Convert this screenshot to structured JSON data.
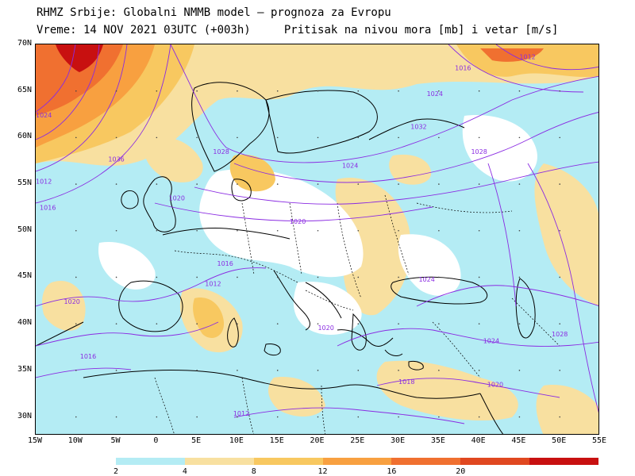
{
  "header": {
    "title": "RHMZ Srbije: Globalni NMMB model — prognoza za Evropu",
    "valid_time": "Vreme: 14 NOV 2021 03UTC (+003h)",
    "field": "Pritisak na nivou mora [mb] i vetar [m/s]"
  },
  "axes": {
    "lat_labels": [
      "70N",
      "65N",
      "60N",
      "55N",
      "50N",
      "45N",
      "40N",
      "35N",
      "30N"
    ],
    "lon_labels": [
      "15W",
      "10W",
      "5W",
      "0",
      "5E",
      "10E",
      "15E",
      "20E",
      "25E",
      "30E",
      "35E",
      "40E",
      "45E",
      "50E",
      "55E"
    ]
  },
  "colorbar": {
    "ticks": [
      "2",
      "4",
      "8",
      "12",
      "16",
      "20"
    ],
    "colors": [
      "#b4ecf4",
      "#f8e0a0",
      "#f8c860",
      "#f8a040",
      "#f07030",
      "#e04820",
      "#c81010"
    ]
  },
  "isobar_labels": [
    {
      "text": "1028",
      "lon": 8,
      "lat": 58.5
    },
    {
      "text": "1024",
      "lon": 24,
      "lat": 57
    },
    {
      "text": "1028",
      "lon": 40,
      "lat": 58.5
    },
    {
      "text": "1032",
      "lon": 32.5,
      "lat": 61.2
    },
    {
      "text": "1024",
      "lon": 34.5,
      "lat": 64.7
    },
    {
      "text": "1016",
      "lon": 38,
      "lat": 67.5
    },
    {
      "text": "1012",
      "lon": 46,
      "lat": 68.7
    },
    {
      "text": "1020",
      "lon": 2.5,
      "lat": 53.5
    },
    {
      "text": "1020",
      "lon": 17.5,
      "lat": 51
    },
    {
      "text": "1016",
      "lon": 8.5,
      "lat": 46.5
    },
    {
      "text": "1012",
      "lon": 7,
      "lat": 44.3
    },
    {
      "text": "1024",
      "lon": 33.5,
      "lat": 44.8
    },
    {
      "text": "1020",
      "lon": -10.5,
      "lat": 42.4
    },
    {
      "text": "1016",
      "lon": -8.5,
      "lat": 36.5
    },
    {
      "text": "1020",
      "lon": 21,
      "lat": 39.6
    },
    {
      "text": "1024",
      "lon": 41.5,
      "lat": 38.2
    },
    {
      "text": "1028",
      "lon": 50,
      "lat": 38.9
    },
    {
      "text": "1018",
      "lon": 31,
      "lat": 33.8
    },
    {
      "text": "1020",
      "lon": 42,
      "lat": 33.5
    },
    {
      "text": "1012",
      "lon": 10.5,
      "lat": 30.4
    },
    {
      "text": "1024",
      "lon": -14,
      "lat": 62.4
    },
    {
      "text": "1012",
      "lon": -14,
      "lat": 55.3
    },
    {
      "text": "1016",
      "lon": -13.5,
      "lat": 52.5
    },
    {
      "text": "1036",
      "lon": -5,
      "lat": 57.7
    }
  ]
}
